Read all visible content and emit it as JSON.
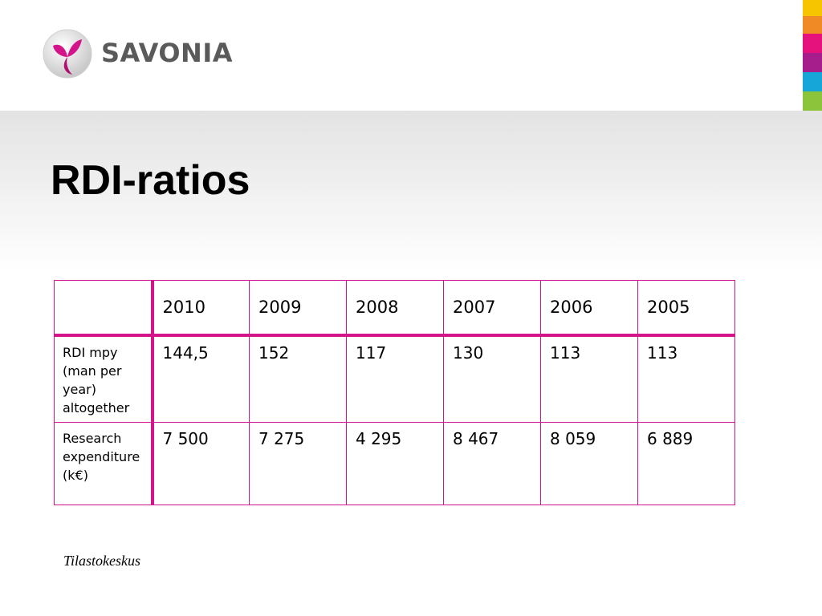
{
  "brand": {
    "name": "SAVONIA",
    "colors": {
      "magenta": "#d4148a",
      "gray": "#5a5a5a"
    }
  },
  "color_strip": [
    "#f6c500",
    "#f08a24",
    "#e5127d",
    "#a61e8b",
    "#17a6d8",
    "#8cc43c"
  ],
  "slide": {
    "title": "RDI-ratios",
    "source": "Tilastokeskus"
  },
  "table": {
    "headers": [
      "",
      "2010",
      "2009",
      "2008",
      "2007",
      "2006",
      "2005"
    ],
    "rows": [
      {
        "label": "RDI mpy (man per year) altogether",
        "values": [
          "144,5",
          "152",
          "117",
          "130",
          "113",
          "113"
        ]
      },
      {
        "label": "Research expenditure (k€)",
        "values": [
          "7 500",
          "7 275",
          "4 295",
          "8 467",
          "8 059",
          "6 889"
        ]
      }
    ]
  }
}
